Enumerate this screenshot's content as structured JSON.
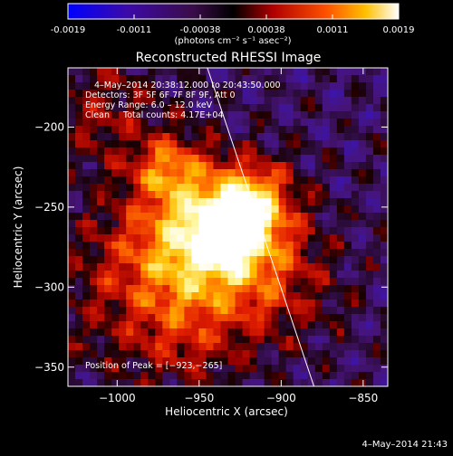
{
  "colorbar": {
    "tick_labels": [
      "-0.0019",
      "-0.0011",
      "-0.00038",
      "0.00038",
      "0.0011",
      "0.0019"
    ],
    "units_label": "(photons cm⁻² s⁻¹ asec⁻²)",
    "range": [
      -0.0019,
      0.0019
    ]
  },
  "chart_data": {
    "type": "heatmap",
    "title": "Reconstructed RHESSI Image",
    "xlabel": "Heliocentric X (arcsec)",
    "ylabel": "Heliocentric Y (arcsec)",
    "xlim": [
      -1030,
      -835
    ],
    "ylim": [
      -362,
      -163
    ],
    "x_ticks": [
      -1000,
      -950,
      -900,
      -850
    ],
    "y_ticks": [
      -200,
      -250,
      -300,
      -350
    ],
    "x_tick_labels": [
      "−1000",
      "−950",
      "−900",
      "−850"
    ],
    "y_tick_labels": [
      "−200",
      "−250",
      "−300",
      "−350"
    ],
    "annotations": [
      "4–May–2014 20:38:12.000 to 20:43:50.000",
      "Detectors: 3F 5F 6F 7F 8F 9F, Att 0",
      "Energy Range: 6.0 – 12.0 keV",
      "Clean     Total counts: 4.17E+04"
    ],
    "peak_label": "Position of Peak = [−923,−265]",
    "peak": [
      -923,
      -265
    ],
    "limb_line": [
      [
        -945,
        -163
      ],
      [
        -880,
        -362
      ]
    ],
    "sources": [
      {
        "x": -945,
        "y": -268,
        "sigma": 30,
        "amp": 1.0
      },
      {
        "x": -928,
        "y": -262,
        "sigma": 18,
        "amp": 0.6
      },
      {
        "x": -970,
        "y": -225,
        "sigma": 14,
        "amp": 0.55
      },
      {
        "x": -915,
        "y": -245,
        "sigma": 16,
        "amp": 0.45
      },
      {
        "x": -990,
        "y": -300,
        "sigma": 35,
        "amp": 0.35
      },
      {
        "x": -900,
        "y": -300,
        "sigma": 28,
        "amp": 0.3
      },
      {
        "x": -1010,
        "y": -190,
        "sigma": 25,
        "amp": 0.3
      },
      {
        "x": -955,
        "y": -330,
        "sigma": 25,
        "amp": 0.25
      }
    ],
    "grid": false
  },
  "footer": {
    "timestamp": "4–May–2014 21:43"
  }
}
